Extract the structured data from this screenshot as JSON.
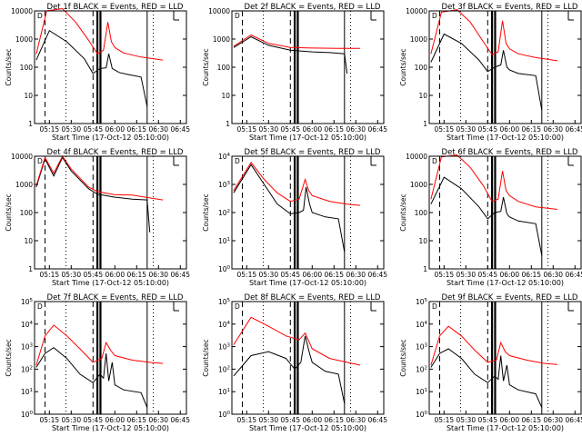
{
  "figure": {
    "xlabel": "Start Time (17-Oct-12 05:10:00)",
    "ylabel": "Counts/sec",
    "xticks": [
      "05:15",
      "05:30",
      "05:45",
      "06:00",
      "06:15",
      "06:30",
      "06:45"
    ],
    "legend_marker": "D",
    "colors": {
      "events": "#000000",
      "lld": "#ff0000"
    }
  },
  "chart_data": [
    {
      "type": "line",
      "title": "Det 1f BLACK = Events, RED = LLD",
      "yticks": [
        "1",
        "10",
        "100",
        "1000",
        "10000"
      ],
      "ylim": [
        1,
        10000
      ],
      "yscale": "log",
      "series": [
        {
          "name": "Events",
          "color": "#000000",
          "points": [
            [
              5.1,
              180
            ],
            [
              5.25,
              2000
            ],
            [
              5.45,
              800
            ],
            [
              5.65,
              200
            ],
            [
              5.75,
              60
            ],
            [
              5.83,
              90
            ],
            [
              5.9,
              95
            ],
            [
              5.93,
              300
            ],
            [
              5.97,
              90
            ],
            [
              6.0,
              80
            ],
            [
              6.05,
              65
            ],
            [
              6.15,
              55
            ],
            [
              6.3,
              45
            ],
            [
              6.37,
              4
            ]
          ]
        },
        {
          "name": "LLD",
          "color": "#ff0000",
          "points": [
            [
              5.1,
              300
            ],
            [
              5.22,
              10000
            ],
            [
              5.4,
              12000
            ],
            [
              5.55,
              4000
            ],
            [
              5.7,
              900
            ],
            [
              5.8,
              300
            ],
            [
              5.87,
              400
            ],
            [
              5.92,
              4000
            ],
            [
              5.96,
              800
            ],
            [
              6.0,
              500
            ],
            [
              6.1,
              320
            ],
            [
              6.3,
              230
            ],
            [
              6.55,
              180
            ]
          ]
        }
      ]
    },
    {
      "type": "line",
      "title": "Det 2f BLACK = Events, RED = LLD",
      "yticks": [
        "1",
        "10",
        "100",
        "1000",
        "10000"
      ],
      "ylim": [
        1,
        10000
      ],
      "yscale": "log",
      "series": [
        {
          "name": "Events",
          "color": "#000000",
          "points": [
            [
              5.1,
              500
            ],
            [
              5.3,
              1200
            ],
            [
              5.5,
              600
            ],
            [
              5.75,
              400
            ],
            [
              6.0,
              350
            ],
            [
              6.2,
              330
            ],
            [
              6.37,
              300
            ],
            [
              6.4,
              60
            ]
          ]
        },
        {
          "name": "LLD",
          "color": "#ff0000",
          "points": [
            [
              5.1,
              550
            ],
            [
              5.3,
              1400
            ],
            [
              5.5,
              700
            ],
            [
              5.75,
              500
            ],
            [
              6.0,
              480
            ],
            [
              6.3,
              470
            ],
            [
              6.55,
              470
            ]
          ]
        }
      ]
    },
    {
      "type": "line",
      "title": "Det 3f BLACK = Events, RED = LLD",
      "yticks": [
        "1",
        "10",
        "100",
        "1000",
        "10000"
      ],
      "ylim": [
        1,
        10000
      ],
      "yscale": "log",
      "series": [
        {
          "name": "Events",
          "color": "#000000",
          "points": [
            [
              5.1,
              150
            ],
            [
              5.25,
              1500
            ],
            [
              5.45,
              700
            ],
            [
              5.65,
              180
            ],
            [
              5.75,
              70
            ],
            [
              5.83,
              100
            ],
            [
              5.9,
              120
            ],
            [
              5.93,
              400
            ],
            [
              5.97,
              100
            ],
            [
              6.0,
              80
            ],
            [
              6.1,
              60
            ],
            [
              6.3,
              50
            ],
            [
              6.37,
              3
            ]
          ]
        },
        {
          "name": "LLD",
          "color": "#ff0000",
          "points": [
            [
              5.1,
              300
            ],
            [
              5.22,
              9000
            ],
            [
              5.4,
              11000
            ],
            [
              5.55,
              4000
            ],
            [
              5.7,
              800
            ],
            [
              5.8,
              280
            ],
            [
              5.87,
              350
            ],
            [
              5.92,
              4500
            ],
            [
              5.96,
              700
            ],
            [
              6.0,
              450
            ],
            [
              6.1,
              300
            ],
            [
              6.3,
              220
            ],
            [
              6.55,
              170
            ]
          ]
        }
      ]
    },
    {
      "type": "line",
      "title": "Det 4f BLACK = Events, RED = LLD",
      "yticks": [
        "1",
        "10",
        "100",
        "1000",
        "10000"
      ],
      "ylim": [
        1,
        10000
      ],
      "yscale": "log",
      "series": [
        {
          "name": "Events",
          "color": "#000000",
          "points": [
            [
              5.1,
              800
            ],
            [
              5.2,
              8000
            ],
            [
              5.3,
              2000
            ],
            [
              5.4,
              9000
            ],
            [
              5.5,
              3000
            ],
            [
              5.7,
              700
            ],
            [
              5.8,
              450
            ],
            [
              6.0,
              350
            ],
            [
              6.2,
              300
            ],
            [
              6.37,
              280
            ],
            [
              6.4,
              20
            ]
          ]
        },
        {
          "name": "LLD",
          "color": "#ff0000",
          "points": [
            [
              5.1,
              900
            ],
            [
              5.2,
              9000
            ],
            [
              5.3,
              2500
            ],
            [
              5.4,
              10000
            ],
            [
              5.5,
              3500
            ],
            [
              5.7,
              800
            ],
            [
              5.8,
              550
            ],
            [
              6.0,
              430
            ],
            [
              6.2,
              420
            ],
            [
              6.35,
              350
            ],
            [
              6.55,
              280
            ]
          ]
        }
      ]
    },
    {
      "type": "line",
      "title": "Det 5f BLACK = Events, RED = LLD",
      "yticks": [
        "10^0",
        "10^1",
        "10^2",
        "10^3",
        "10^4"
      ],
      "ylim": [
        1,
        10000
      ],
      "yscale": "log",
      "series": [
        {
          "name": "Events",
          "color": "#000000",
          "points": [
            [
              5.1,
              500
            ],
            [
              5.3,
              5000
            ],
            [
              5.45,
              1000
            ],
            [
              5.6,
              200
            ],
            [
              5.75,
              90
            ],
            [
              5.85,
              100
            ],
            [
              5.9,
              120
            ],
            [
              5.93,
              800
            ],
            [
              5.97,
              200
            ],
            [
              6.0,
              100
            ],
            [
              6.15,
              70
            ],
            [
              6.3,
              60
            ],
            [
              6.37,
              4
            ]
          ]
        },
        {
          "name": "LLD",
          "color": "#ff0000",
          "points": [
            [
              5.1,
              600
            ],
            [
              5.3,
              6000
            ],
            [
              5.45,
              1500
            ],
            [
              5.6,
              500
            ],
            [
              5.75,
              250
            ],
            [
              5.85,
              300
            ],
            [
              5.92,
              1500
            ],
            [
              5.96,
              600
            ],
            [
              6.0,
              400
            ],
            [
              6.2,
              250
            ],
            [
              6.4,
              200
            ],
            [
              6.55,
              180
            ]
          ]
        }
      ]
    },
    {
      "type": "line",
      "title": "Det 6f BLACK = Events, RED = LLD",
      "yticks": [
        "1",
        "10",
        "100",
        "1000",
        "10000"
      ],
      "ylim": [
        1,
        10000
      ],
      "yscale": "log",
      "series": [
        {
          "name": "Events",
          "color": "#000000",
          "points": [
            [
              5.1,
              200
            ],
            [
              5.25,
              1800
            ],
            [
              5.45,
              700
            ],
            [
              5.65,
              160
            ],
            [
              5.75,
              60
            ],
            [
              5.83,
              100
            ],
            [
              5.9,
              110
            ],
            [
              5.93,
              350
            ],
            [
              5.97,
              90
            ],
            [
              6.0,
              70
            ],
            [
              6.1,
              50
            ],
            [
              6.3,
              40
            ],
            [
              6.37,
              3
            ]
          ]
        },
        {
          "name": "LLD",
          "color": "#ff0000",
          "points": [
            [
              5.1,
              300
            ],
            [
              5.22,
              9500
            ],
            [
              5.4,
              11000
            ],
            [
              5.55,
              4000
            ],
            [
              5.7,
              900
            ],
            [
              5.8,
              250
            ],
            [
              5.87,
              300
            ],
            [
              5.92,
              3000
            ],
            [
              5.96,
              600
            ],
            [
              6.0,
              400
            ],
            [
              6.1,
              250
            ],
            [
              6.3,
              160
            ],
            [
              6.55,
              130
            ]
          ]
        }
      ]
    },
    {
      "type": "line",
      "title": "Det 7f BLACK = Events, RED = LLD",
      "yticks": [
        "10^0",
        "10^1",
        "10^2",
        "10^3",
        "10^4",
        "10^5"
      ],
      "ylim": [
        1,
        100000
      ],
      "yscale": "log",
      "series": [
        {
          "name": "Events",
          "color": "#000000",
          "points": [
            [
              5.1,
              120
            ],
            [
              5.2,
              500
            ],
            [
              5.3,
              900
            ],
            [
              5.45,
              300
            ],
            [
              5.6,
              60
            ],
            [
              5.75,
              25
            ],
            [
              5.83,
              60
            ],
            [
              5.87,
              40
            ],
            [
              5.9,
              500
            ],
            [
              5.93,
              30
            ],
            [
              5.97,
              200
            ],
            [
              6.0,
              20
            ],
            [
              6.1,
              12
            ],
            [
              6.3,
              9
            ],
            [
              6.37,
              2
            ]
          ]
        },
        {
          "name": "LLD",
          "color": "#ff0000",
          "points": [
            [
              5.1,
              150
            ],
            [
              5.2,
              3000
            ],
            [
              5.3,
              9000
            ],
            [
              5.45,
              3000
            ],
            [
              5.6,
              800
            ],
            [
              5.75,
              200
            ],
            [
              5.85,
              300
            ],
            [
              5.9,
              1500
            ],
            [
              5.95,
              700
            ],
            [
              6.0,
              400
            ],
            [
              6.2,
              250
            ],
            [
              6.4,
              200
            ],
            [
              6.55,
              180
            ]
          ]
        }
      ]
    },
    {
      "type": "line",
      "title": "Det 8f BLACK = Events, RED = LLD",
      "yticks": [
        "10^0",
        "10^1",
        "10^2",
        "10^3",
        "10^4",
        "10^5"
      ],
      "ylim": [
        1,
        100000
      ],
      "yscale": "log",
      "series": [
        {
          "name": "Events",
          "color": "#000000",
          "points": [
            [
              5.1,
              50
            ],
            [
              5.3,
              400
            ],
            [
              5.5,
              600
            ],
            [
              5.7,
              300
            ],
            [
              5.8,
              100
            ],
            [
              5.87,
              200
            ],
            [
              5.92,
              3000
            ],
            [
              5.97,
              500
            ],
            [
              6.0,
              200
            ],
            [
              6.15,
              80
            ],
            [
              6.3,
              60
            ],
            [
              6.37,
              3
            ]
          ]
        },
        {
          "name": "LLD",
          "color": "#ff0000",
          "points": [
            [
              5.1,
              1200
            ],
            [
              5.3,
              20000
            ],
            [
              5.5,
              8000
            ],
            [
              5.7,
              3000
            ],
            [
              5.85,
              2000
            ],
            [
              5.92,
              4000
            ],
            [
              6.0,
              800
            ],
            [
              6.2,
              300
            ],
            [
              6.4,
              200
            ],
            [
              6.55,
              150
            ]
          ]
        }
      ]
    },
    {
      "type": "line",
      "title": "Det 9f BLACK = Events, RED = LLD",
      "yticks": [
        "10^0",
        "10^1",
        "10^2",
        "10^3",
        "10^4",
        "10^5"
      ],
      "ylim": [
        1,
        100000
      ],
      "yscale": "log",
      "series": [
        {
          "name": "Events",
          "color": "#000000",
          "points": [
            [
              5.1,
              120
            ],
            [
              5.2,
              500
            ],
            [
              5.3,
              800
            ],
            [
              5.45,
              300
            ],
            [
              5.6,
              60
            ],
            [
              5.75,
              25
            ],
            [
              5.83,
              50
            ],
            [
              5.87,
              35
            ],
            [
              5.9,
              400
            ],
            [
              5.93,
              30
            ],
            [
              5.97,
              150
            ],
            [
              6.0,
              20
            ],
            [
              6.1,
              12
            ],
            [
              6.3,
              8
            ],
            [
              6.37,
              2
            ]
          ]
        },
        {
          "name": "LLD",
          "color": "#ff0000",
          "points": [
            [
              5.1,
              150
            ],
            [
              5.2,
              3000
            ],
            [
              5.3,
              8000
            ],
            [
              5.45,
              3000
            ],
            [
              5.6,
              700
            ],
            [
              5.75,
              200
            ],
            [
              5.85,
              250
            ],
            [
              5.9,
              1500
            ],
            [
              5.95,
              600
            ],
            [
              6.0,
              400
            ],
            [
              6.2,
              250
            ],
            [
              6.4,
              180
            ],
            [
              6.55,
              160
            ]
          ]
        }
      ]
    }
  ]
}
